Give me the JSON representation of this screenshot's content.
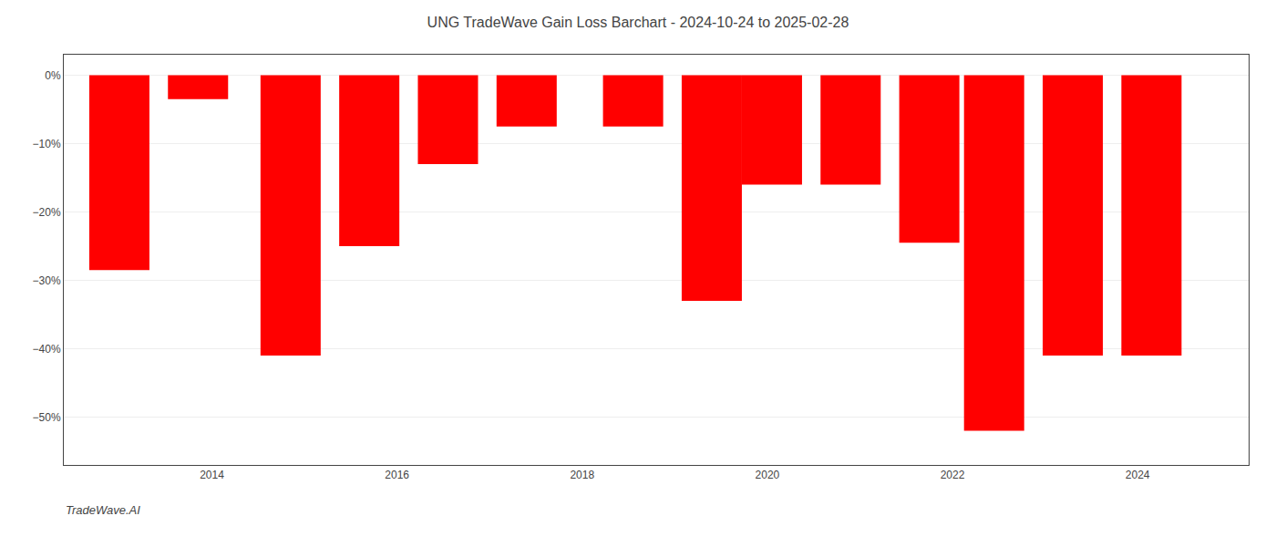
{
  "chart_data": {
    "type": "bar",
    "title": "UNG TradeWave Gain Loss Barchart - 2024-10-24 to 2025-02-28",
    "annotations": [
      "TradeWave.AI"
    ],
    "x": [
      2013.0,
      2013.85,
      2014.85,
      2015.7,
      2016.55,
      2017.4,
      2018.55,
      2019.4,
      2020.05,
      2020.9,
      2021.75,
      2022.45,
      2023.3,
      2024.15
    ],
    "values": [
      -28.5,
      -3.5,
      -41.0,
      -25.0,
      -13.0,
      -7.5,
      -7.5,
      -33.0,
      -16.0,
      -16.0,
      -24.5,
      -52.0,
      -41.0,
      -41.0
    ],
    "color": "#ff0000",
    "xlim": [
      2012.4,
      2025.2
    ],
    "xticks": [
      2014,
      2016,
      2018,
      2020,
      2022,
      2024
    ],
    "ylim": [
      -57,
      3
    ],
    "yticks": [
      {
        "value": 0,
        "label": "0%"
      },
      {
        "value": -10,
        "label": "−10%"
      },
      {
        "value": -20,
        "label": "−20%"
      },
      {
        "value": -30,
        "label": "−30%"
      },
      {
        "value": -40,
        "label": "−40%"
      },
      {
        "value": -50,
        "label": "−50%"
      }
    ],
    "grid": "y"
  }
}
